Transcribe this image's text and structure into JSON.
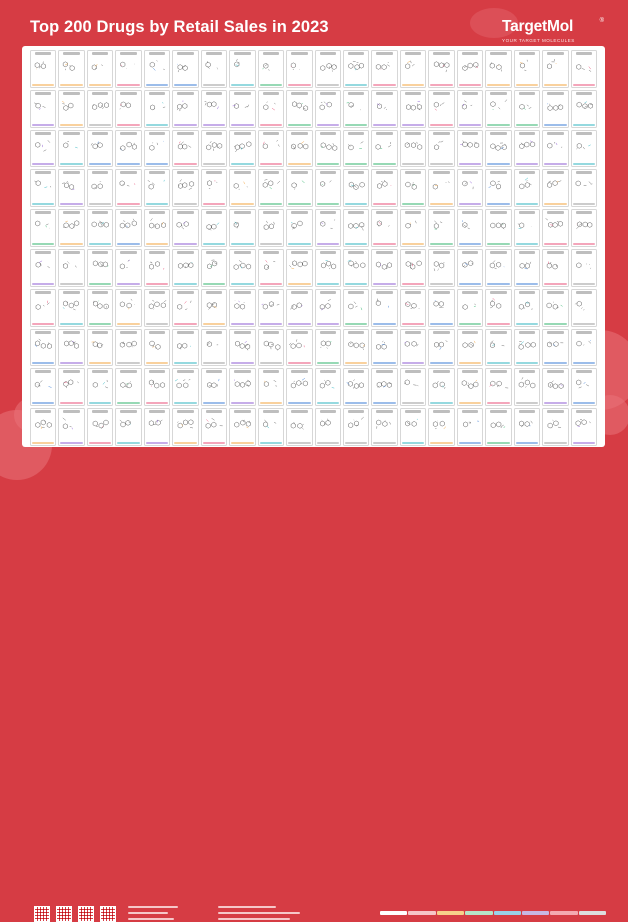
{
  "header": {
    "title": "Top 200 Drugs by Retail Sales in 2023",
    "brand": "TargetMol",
    "brand_reg": "®",
    "tagline": "YOUR TARGET MOLECULES"
  },
  "grid": {
    "columns": 20,
    "rows": 10
  },
  "colors": {
    "background": "#d63c44",
    "poster": "#ffffff",
    "blob": "#e9737a",
    "molecule_palette": [
      "#e94e77",
      "#3a7bd5",
      "#2fb36b",
      "#f3a33c",
      "#8e5bd3",
      "#2bb3c0",
      "#999999"
    ]
  },
  "legend": {
    "colors": [
      "#ffffff",
      "#f6c5c7",
      "#f7d08a",
      "#b7e4c7",
      "#9ad1e8",
      "#c8b6e2",
      "#f4a9b0",
      "#dddddd"
    ]
  },
  "icons": [
    "targetmol-logo",
    "qr-code-icon"
  ]
}
